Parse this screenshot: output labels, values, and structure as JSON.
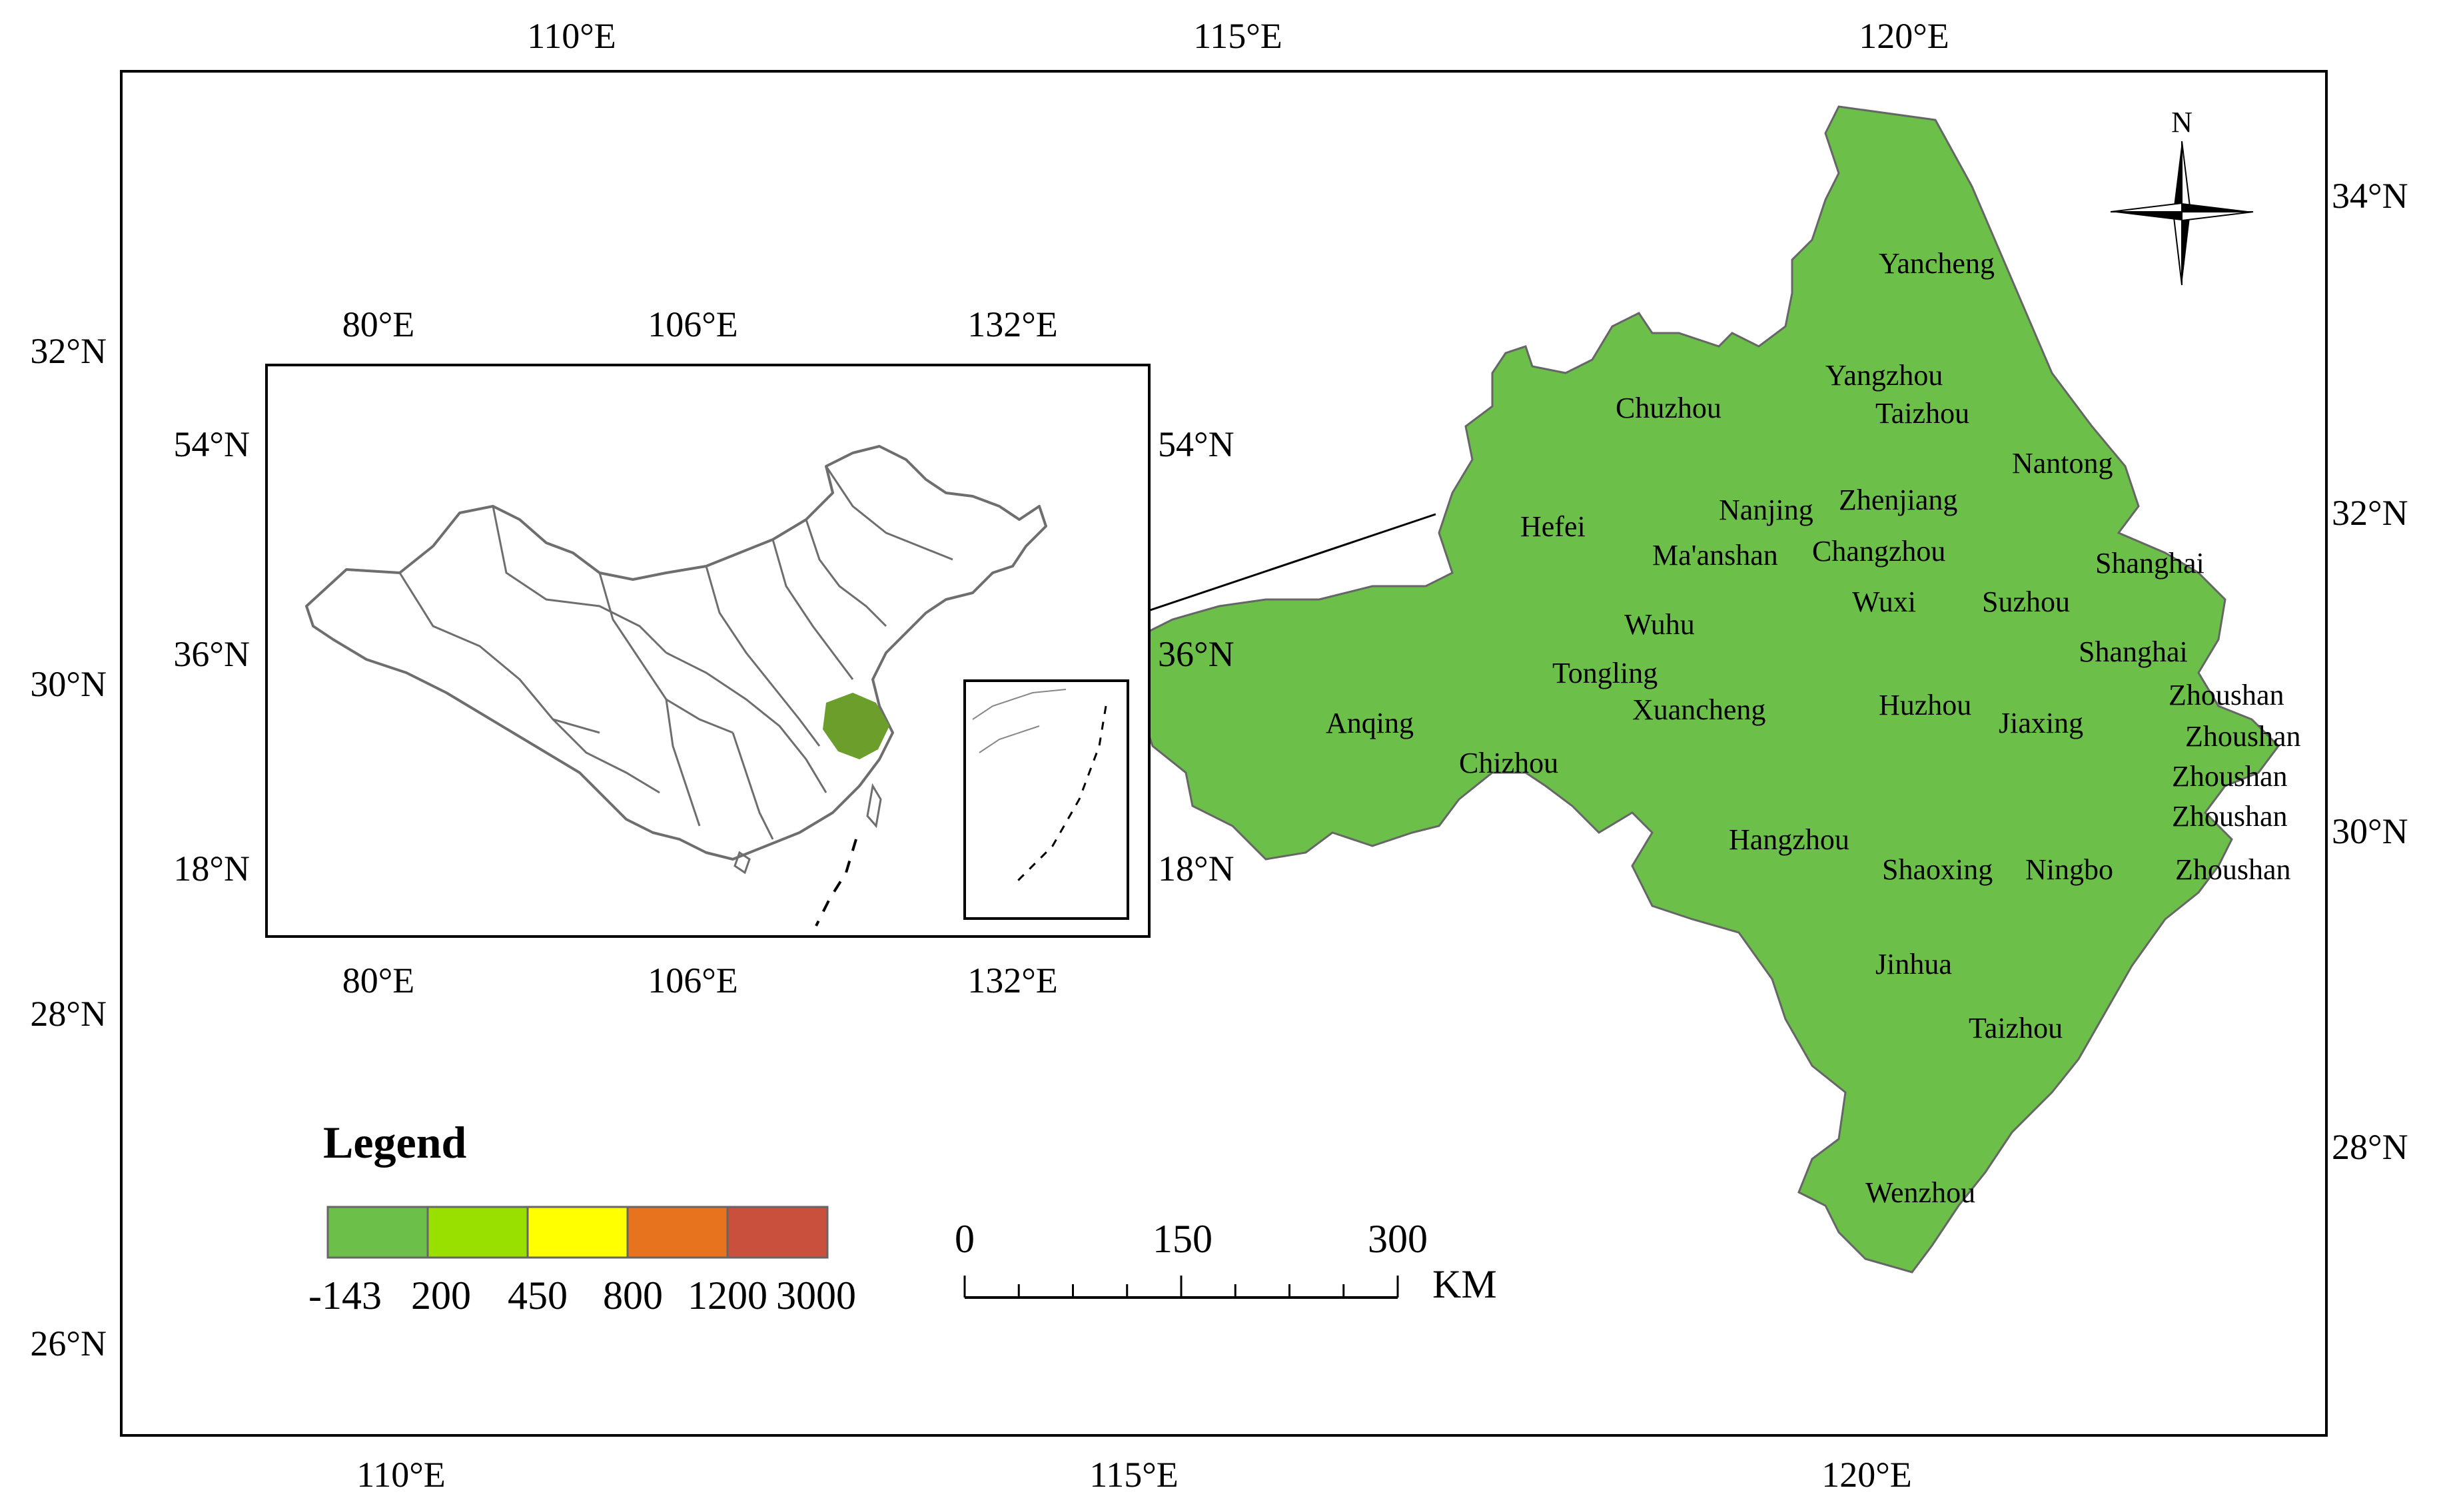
{
  "main_map": {
    "top_lon_labels": [
      "110°E",
      "115°E",
      "120°E"
    ],
    "bottom_lon_labels": [
      "110°E",
      "115°E",
      "120°E"
    ],
    "left_lat_labels": [
      "32°N",
      "30°N",
      "28°N",
      "26°N"
    ],
    "right_lat_labels": [
      "34°N",
      "32°N",
      "30°N",
      "28°N"
    ],
    "region_color": "#6cc04a",
    "cities": [
      "Yancheng",
      "Yangzhou",
      "Taizhou",
      "Chuzhou",
      "Nantong",
      "Nanjing",
      "Zhenjiang",
      "Hefei",
      "Ma'anshan",
      "Changzhou",
      "Shanghai",
      "Wuxi",
      "Suzhou",
      "Wuhu",
      "Shanghai",
      "Tongling",
      "Zhoushan",
      "Xuancheng",
      "Huzhou",
      "Zhoushan",
      "Anqing",
      "Jiaxing",
      "Chizhou",
      "Zhoushan",
      "Zhoushan",
      "Hangzhou",
      "Shaoxing",
      "Ningbo",
      "Zhoushan",
      "Jinhua",
      "Taizhou",
      "Wenzhou"
    ]
  },
  "inset_map": {
    "top_lon_labels": [
      "80°E",
      "106°E",
      "132°E"
    ],
    "bottom_lon_labels": [
      "80°E",
      "106°E",
      "132°E"
    ],
    "left_lat_labels": [
      "54°N",
      "36°N",
      "18°N"
    ],
    "right_lat_labels": [
      "54°N",
      "36°N",
      "18°N"
    ],
    "highlight_color": "#6b9e2a"
  },
  "north_arrow": {
    "label": "N",
    "icon": "compass-rose-icon"
  },
  "legend": {
    "title": "Legend",
    "classes": [
      {
        "color": "#6cc04a"
      },
      {
        "color": "#99e000"
      },
      {
        "color": "#ffff00"
      },
      {
        "color": "#e8731f"
      },
      {
        "color": "#c8503c"
      }
    ],
    "breaks": [
      "-143",
      "200",
      "450",
      "800",
      "1200",
      "3000"
    ]
  },
  "scale_bar": {
    "labels": [
      "0",
      "150",
      "300"
    ],
    "unit": "KM"
  }
}
